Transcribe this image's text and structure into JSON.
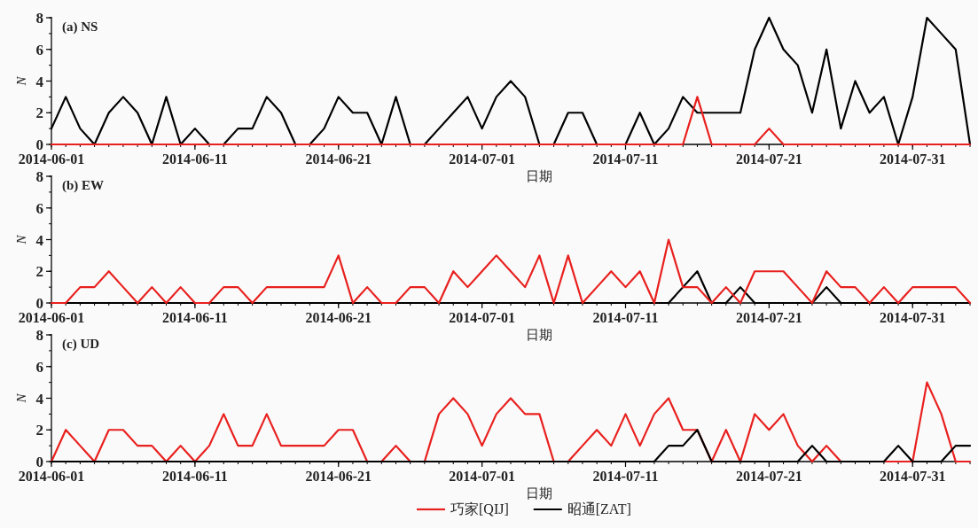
{
  "chart_data": [
    {
      "type": "line",
      "title": "(a) NS",
      "xlabel": "日期",
      "ylabel": "N",
      "xlim": [
        "2014-06-01",
        "2014-08-04"
      ],
      "xticks": [
        "2014-06-01",
        "2014-06-11",
        "2014-06-21",
        "2014-07-01",
        "2014-07-11",
        "2014-07-21",
        "2014-07-31"
      ],
      "ylim": [
        0,
        8
      ],
      "yticks": [
        0,
        2,
        4,
        6,
        8
      ],
      "x": [
        "2014-06-01",
        "2014-06-02",
        "2014-06-03",
        "2014-06-04",
        "2014-06-05",
        "2014-06-06",
        "2014-06-07",
        "2014-06-08",
        "2014-06-09",
        "2014-06-10",
        "2014-06-11",
        "2014-06-12",
        "2014-06-13",
        "2014-06-14",
        "2014-06-15",
        "2014-06-16",
        "2014-06-17",
        "2014-06-18",
        "2014-06-19",
        "2014-06-20",
        "2014-06-21",
        "2014-06-22",
        "2014-06-23",
        "2014-06-24",
        "2014-06-25",
        "2014-06-26",
        "2014-06-27",
        "2014-06-28",
        "2014-06-29",
        "2014-06-30",
        "2014-07-01",
        "2014-07-02",
        "2014-07-03",
        "2014-07-04",
        "2014-07-05",
        "2014-07-06",
        "2014-07-07",
        "2014-07-08",
        "2014-07-09",
        "2014-07-10",
        "2014-07-11",
        "2014-07-12",
        "2014-07-13",
        "2014-07-14",
        "2014-07-15",
        "2014-07-16",
        "2014-07-17",
        "2014-07-18",
        "2014-07-19",
        "2014-07-20",
        "2014-07-21",
        "2014-07-22",
        "2014-07-23",
        "2014-07-24",
        "2014-07-25",
        "2014-07-26",
        "2014-07-27",
        "2014-07-28",
        "2014-07-29",
        "2014-07-30",
        "2014-07-31",
        "2014-08-01",
        "2014-08-02",
        "2014-08-03",
        "2014-08-04"
      ],
      "series": [
        {
          "color": "#000000",
          "values": [
            1,
            3,
            1,
            0,
            2,
            3,
            2,
            0,
            3,
            0,
            1,
            0,
            0,
            1,
            1,
            3,
            2,
            0,
            0,
            1,
            3,
            2,
            2,
            0,
            3,
            0,
            0,
            1,
            2,
            3,
            1,
            3,
            4,
            3,
            0,
            0,
            2,
            2,
            0,
            0,
            0,
            2,
            0,
            1,
            3,
            2,
            2,
            2,
            2,
            6,
            8,
            6,
            5,
            2,
            6,
            1,
            4,
            2,
            3,
            0,
            3,
            8,
            7,
            6,
            0
          ]
        },
        {
          "color": "#e8201e",
          "values": [
            0,
            0,
            0,
            0,
            0,
            0,
            0,
            0,
            0,
            0,
            0,
            0,
            0,
            0,
            0,
            0,
            0,
            0,
            0,
            0,
            0,
            0,
            0,
            0,
            0,
            0,
            0,
            0,
            0,
            0,
            0,
            0,
            0,
            0,
            0,
            0,
            0,
            0,
            0,
            0,
            0,
            0,
            0,
            0,
            0,
            3,
            0,
            0,
            0,
            0,
            1,
            0,
            0,
            0,
            0,
            0,
            0,
            0,
            0,
            0,
            0,
            0,
            0,
            0,
            0
          ]
        }
      ]
    },
    {
      "type": "line",
      "title": "(b) EW",
      "xlabel": "日期",
      "ylabel": "N",
      "xlim": [
        "2014-06-01",
        "2014-08-04"
      ],
      "xticks": [
        "2014-06-01",
        "2014-06-11",
        "2014-06-21",
        "2014-07-01",
        "2014-07-11",
        "2014-07-21",
        "2014-07-31"
      ],
      "ylim": [
        0,
        8
      ],
      "yticks": [
        0,
        2,
        4,
        6,
        8
      ],
      "x": [
        "2014-06-01",
        "2014-06-02",
        "2014-06-03",
        "2014-06-04",
        "2014-06-05",
        "2014-06-06",
        "2014-06-07",
        "2014-06-08",
        "2014-06-09",
        "2014-06-10",
        "2014-06-11",
        "2014-06-12",
        "2014-06-13",
        "2014-06-14",
        "2014-06-15",
        "2014-06-16",
        "2014-06-17",
        "2014-06-18",
        "2014-06-19",
        "2014-06-20",
        "2014-06-21",
        "2014-06-22",
        "2014-06-23",
        "2014-06-24",
        "2014-06-25",
        "2014-06-26",
        "2014-06-27",
        "2014-06-28",
        "2014-06-29",
        "2014-06-30",
        "2014-07-01",
        "2014-07-02",
        "2014-07-03",
        "2014-07-04",
        "2014-07-05",
        "2014-07-06",
        "2014-07-07",
        "2014-07-08",
        "2014-07-09",
        "2014-07-10",
        "2014-07-11",
        "2014-07-12",
        "2014-07-13",
        "2014-07-14",
        "2014-07-15",
        "2014-07-16",
        "2014-07-17",
        "2014-07-18",
        "2014-07-19",
        "2014-07-20",
        "2014-07-21",
        "2014-07-22",
        "2014-07-23",
        "2014-07-24",
        "2014-07-25",
        "2014-07-26",
        "2014-07-27",
        "2014-07-28",
        "2014-07-29",
        "2014-07-30",
        "2014-07-31",
        "2014-08-01",
        "2014-08-02",
        "2014-08-03",
        "2014-08-04"
      ],
      "series": [
        {
          "color": "#000000",
          "values": [
            0,
            0,
            0,
            0,
            0,
            0,
            0,
            0,
            0,
            0,
            0,
            0,
            0,
            0,
            0,
            0,
            0,
            0,
            0,
            0,
            0,
            0,
            0,
            0,
            0,
            0,
            0,
            0,
            0,
            0,
            0,
            0,
            0,
            0,
            0,
            0,
            0,
            0,
            0,
            0,
            0,
            0,
            0,
            0,
            1,
            2,
            0,
            0,
            1,
            0,
            0,
            0,
            0,
            0,
            1,
            0,
            0,
            0,
            0,
            0,
            0,
            0,
            0,
            0,
            0
          ]
        },
        {
          "color": "#e8201e",
          "values": [
            0,
            0,
            1,
            1,
            2,
            1,
            0,
            1,
            0,
            1,
            0,
            0,
            1,
            1,
            0,
            1,
            1,
            1,
            1,
            1,
            3,
            0,
            1,
            0,
            0,
            1,
            1,
            0,
            2,
            1,
            2,
            3,
            2,
            1,
            3,
            0,
            3,
            0,
            1,
            2,
            1,
            2,
            0,
            4,
            1,
            1,
            0,
            1,
            0,
            2,
            2,
            2,
            1,
            0,
            2,
            1,
            1,
            0,
            1,
            0,
            1,
            1,
            1,
            1,
            0
          ]
        }
      ]
    },
    {
      "type": "line",
      "title": "(c) UD",
      "xlabel": "日期",
      "ylabel": "N",
      "xlim": [
        "2014-06-01",
        "2014-08-04"
      ],
      "xticks": [
        "2014-06-01",
        "2014-06-11",
        "2014-06-21",
        "2014-07-01",
        "2014-07-11",
        "2014-07-21",
        "2014-07-31"
      ],
      "ylim": [
        0,
        8
      ],
      "yticks": [
        0,
        2,
        4,
        6,
        8
      ],
      "legend": "bottom",
      "x": [
        "2014-06-01",
        "2014-06-02",
        "2014-06-03",
        "2014-06-04",
        "2014-06-05",
        "2014-06-06",
        "2014-06-07",
        "2014-06-08",
        "2014-06-09",
        "2014-06-10",
        "2014-06-11",
        "2014-06-12",
        "2014-06-13",
        "2014-06-14",
        "2014-06-15",
        "2014-06-16",
        "2014-06-17",
        "2014-06-18",
        "2014-06-19",
        "2014-06-20",
        "2014-06-21",
        "2014-06-22",
        "2014-06-23",
        "2014-06-24",
        "2014-06-25",
        "2014-06-26",
        "2014-06-27",
        "2014-06-28",
        "2014-06-29",
        "2014-06-30",
        "2014-07-01",
        "2014-07-02",
        "2014-07-03",
        "2014-07-04",
        "2014-07-05",
        "2014-07-06",
        "2014-07-07",
        "2014-07-08",
        "2014-07-09",
        "2014-07-10",
        "2014-07-11",
        "2014-07-12",
        "2014-07-13",
        "2014-07-14",
        "2014-07-15",
        "2014-07-16",
        "2014-07-17",
        "2014-07-18",
        "2014-07-19",
        "2014-07-20",
        "2014-07-21",
        "2014-07-22",
        "2014-07-23",
        "2014-07-24",
        "2014-07-25",
        "2014-07-26",
        "2014-07-27",
        "2014-07-28",
        "2014-07-29",
        "2014-07-30",
        "2014-07-31",
        "2014-08-01",
        "2014-08-02",
        "2014-08-03",
        "2014-08-04"
      ],
      "series": [
        {
          "name": "巧家[QIJ]",
          "color": "#e8201e",
          "values": [
            0,
            2,
            1,
            0,
            2,
            2,
            1,
            1,
            0,
            1,
            0,
            1,
            3,
            1,
            1,
            3,
            1,
            1,
            1,
            1,
            2,
            2,
            0,
            0,
            1,
            0,
            0,
            3,
            4,
            3,
            1,
            3,
            4,
            3,
            3,
            0,
            0,
            1,
            2,
            1,
            3,
            1,
            3,
            4,
            2,
            2,
            0,
            2,
            0,
            3,
            2,
            3,
            1,
            0,
            1,
            0,
            0,
            0,
            0,
            0,
            0,
            5,
            3,
            0,
            0
          ]
        },
        {
          "name": "昭通[ZAT]",
          "color": "#000000",
          "values": [
            0,
            0,
            0,
            0,
            0,
            0,
            0,
            0,
            0,
            0,
            0,
            0,
            0,
            0,
            0,
            0,
            0,
            0,
            0,
            0,
            0,
            0,
            0,
            0,
            0,
            0,
            0,
            0,
            0,
            0,
            0,
            0,
            0,
            0,
            0,
            0,
            0,
            0,
            0,
            0,
            0,
            0,
            0,
            1,
            1,
            2,
            0,
            0,
            0,
            0,
            0,
            0,
            0,
            1,
            0,
            0,
            0,
            0,
            0,
            1,
            0,
            0,
            0,
            1,
            1
          ]
        }
      ]
    }
  ]
}
